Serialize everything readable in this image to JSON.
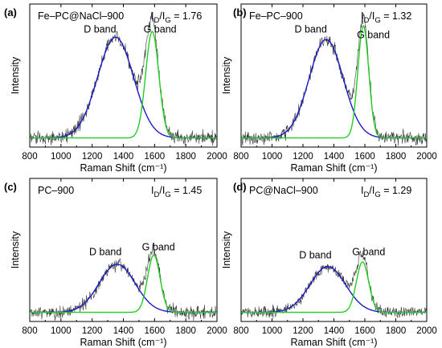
{
  "chart_data": [
    {
      "panel": "(a)",
      "type": "line",
      "sample": "Fe–PC@NaCl–900",
      "ratio_text": "= 1.76",
      "xlabel": "Raman Shift (cm⁻¹)",
      "ylabel": "Intensity",
      "xlim": [
        800,
        2000
      ],
      "x_ticks": [
        "800",
        "1000",
        "1200",
        "1400",
        "1600",
        "1800",
        "2000"
      ],
      "baseline": 0.08,
      "ylim": [
        0,
        1.25
      ],
      "noise": 0.05,
      "bands": [
        {
          "label": "D band",
          "center": 1350,
          "height": 0.88,
          "sigma": 115,
          "color": "#1a1acc",
          "label_x": 1250,
          "label_y": 1.0
        },
        {
          "label": "G band",
          "center": 1585,
          "height": 0.93,
          "sigma": 42,
          "color": "#22cc22",
          "label_x": 1635,
          "label_y": 1.0
        }
      ]
    },
    {
      "panel": "(b)",
      "type": "line",
      "sample": "Fe–PC–900",
      "ratio_text": "= 1.32",
      "xlabel": "Raman Shift (cm⁻¹)",
      "ylabel": "Intensity",
      "xlim": [
        800,
        2000
      ],
      "x_ticks": [
        "800",
        "1000",
        "1200",
        "1400",
        "1600",
        "1800",
        "2000"
      ],
      "baseline": 0.08,
      "ylim": [
        0,
        1.25
      ],
      "noise": 0.05,
      "bands": [
        {
          "label": "D band",
          "center": 1350,
          "height": 0.86,
          "sigma": 110,
          "color": "#1a1acc",
          "label_x": 1250,
          "label_y": 1.0
        },
        {
          "label": "G band",
          "center": 1590,
          "height": 0.98,
          "sigma": 35,
          "color": "#22cc22",
          "label_x": 1655,
          "label_y": 0.95
        }
      ]
    },
    {
      "panel": "(c)",
      "type": "line",
      "sample": "PC–900",
      "ratio_text": "= 1.45",
      "xlabel": "Raman Shift (cm⁻¹)",
      "ylabel": "Intensity",
      "xlim": [
        800,
        2000
      ],
      "x_ticks": [
        "800",
        "1000",
        "1200",
        "1400",
        "1600",
        "1800",
        "2000"
      ],
      "baseline": 0.08,
      "ylim": [
        0,
        1.25
      ],
      "noise": 0.045,
      "bands": [
        {
          "label": "D band",
          "center": 1360,
          "height": 0.42,
          "sigma": 115,
          "color": "#1a1acc",
          "label_x": 1285,
          "label_y": 0.58
        },
        {
          "label": "G band",
          "center": 1595,
          "height": 0.5,
          "sigma": 40,
          "color": "#22cc22",
          "label_x": 1625,
          "label_y": 0.62
        }
      ]
    },
    {
      "panel": "(d)",
      "type": "line",
      "sample": "PC@NaCl–900",
      "ratio_text": "= 1.29",
      "xlabel": "Raman Shift (cm⁻¹)",
      "ylabel": "Intensity",
      "xlim": [
        800,
        2000
      ],
      "x_ticks": [
        "800",
        "1000",
        "1200",
        "1400",
        "1600",
        "1800",
        "2000"
      ],
      "baseline": 0.08,
      "ylim": [
        0,
        1.25
      ],
      "noise": 0.04,
      "bands": [
        {
          "label": "D band",
          "center": 1360,
          "height": 0.4,
          "sigma": 115,
          "color": "#1a1acc",
          "label_x": 1280,
          "label_y": 0.55
        },
        {
          "label": "G band",
          "center": 1585,
          "height": 0.44,
          "sigma": 40,
          "color": "#22cc22",
          "label_x": 1625,
          "label_y": 0.58
        }
      ]
    }
  ]
}
